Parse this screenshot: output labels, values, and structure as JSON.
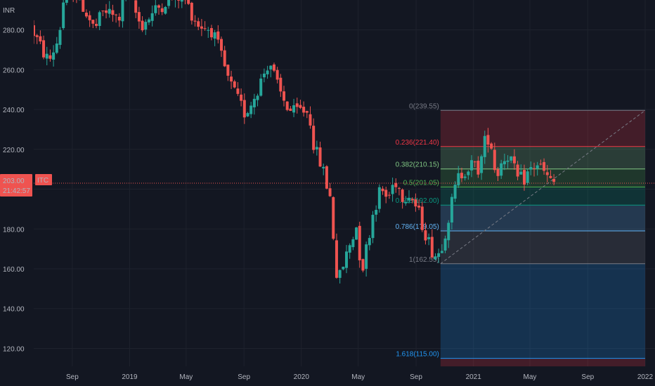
{
  "currency_label": "INR",
  "symbol": "ITC",
  "price_badge": {
    "price": "203.00",
    "time": "21:42:57"
  },
  "colors": {
    "background": "#131722",
    "grid": "#1e222d",
    "up": "#26a69a",
    "down": "#ef5350",
    "axis_text": "#b2b5be",
    "price_line": "#ef5350"
  },
  "chart_data": {
    "type": "candlestick",
    "title": "",
    "y_axis": {
      "ylim": [
        111,
        295
      ],
      "ticks": [
        "280.00",
        "260.00",
        "240.00",
        "220.00",
        "200.00",
        "180.00",
        "160.00",
        "140.00",
        "120.00"
      ],
      "tick_values": [
        280,
        260,
        240,
        220,
        200,
        180,
        160,
        140,
        120
      ],
      "position": "left"
    },
    "x_axis": {
      "xlim": [
        "2018-06-11",
        "2022-01-22"
      ],
      "ticks": [
        "Sep",
        "2019",
        "May",
        "Sep",
        "2020",
        "May",
        "Sep",
        "2021",
        "May",
        "Sep",
        "2022"
      ],
      "tick_dates": [
        "2018-09-01",
        "2019-01-01",
        "2019-05-01",
        "2019-09-01",
        "2020-01-01",
        "2020-05-01",
        "2020-09-01",
        "2021-01-01",
        "2021-05-01",
        "2021-09-01",
        "2022-01-01"
      ]
    },
    "grid": true,
    "current_price": 203.0,
    "fibonacci": {
      "start": {
        "date": "2020-10-23",
        "price": 162.55
      },
      "end": {
        "date": "2022-01-01",
        "price": 239.55
      },
      "levels": [
        {
          "ratio": 0,
          "price": 239.55,
          "label": "0(239.55)",
          "color": "#787b86"
        },
        {
          "ratio": 0.236,
          "price": 221.4,
          "label": "0.236(221.40)",
          "color": "#f23645"
        },
        {
          "ratio": 0.382,
          "price": 210.15,
          "label": "0.382(210.15)",
          "color": "#81c784"
        },
        {
          "ratio": 0.5,
          "price": 201.05,
          "label": "0.5(201.05)",
          "color": "#4caf50"
        },
        {
          "ratio": 0.618,
          "price": 192.0,
          "label": "0.618(192.00)",
          "color": "#089981"
        },
        {
          "ratio": 0.786,
          "price": 179.05,
          "label": "0.786(179.05)",
          "color": "#64b5f6"
        },
        {
          "ratio": 1,
          "price": 162.55,
          "label": "1(162.55)",
          "color": "#787b86"
        },
        {
          "ratio": 1.618,
          "price": 115.0,
          "label": "1.618(115.00)",
          "color": "#2196f3"
        }
      ]
    },
    "price_path": [
      [
        "2018-06-11",
        282
      ],
      [
        "2018-07-01",
        272
      ],
      [
        "2018-07-20",
        264
      ],
      [
        "2018-08-10",
        276
      ],
      [
        "2018-08-25",
        303
      ],
      [
        "2018-09-25",
        295
      ],
      [
        "2018-10-25",
        280
      ],
      [
        "2018-11-15",
        290
      ],
      [
        "2018-12-15",
        285
      ],
      [
        "2019-01-01",
        300
      ],
      [
        "2019-02-01",
        282
      ],
      [
        "2019-03-05",
        290
      ],
      [
        "2019-04-01",
        296
      ],
      [
        "2019-05-01",
        297
      ],
      [
        "2019-06-01",
        283
      ],
      [
        "2019-07-01",
        280
      ],
      [
        "2019-07-20",
        268
      ],
      [
        "2019-08-05",
        255
      ],
      [
        "2019-08-25",
        245
      ],
      [
        "2019-09-10",
        238
      ],
      [
        "2019-09-25",
        244
      ],
      [
        "2019-10-15",
        255
      ],
      [
        "2019-11-01",
        265
      ],
      [
        "2019-11-20",
        250
      ],
      [
        "2019-12-05",
        243
      ],
      [
        "2019-12-20",
        238
      ],
      [
        "2020-01-10",
        240
      ],
      [
        "2020-01-25",
        238
      ],
      [
        "2020-02-05",
        220
      ],
      [
        "2020-02-20",
        212
      ],
      [
        "2020-03-10",
        195
      ],
      [
        "2020-03-20",
        165
      ],
      [
        "2020-03-25",
        152
      ],
      [
        "2020-04-10",
        165
      ],
      [
        "2020-04-20",
        172
      ],
      [
        "2020-05-05",
        182
      ],
      [
        "2020-05-15",
        158
      ],
      [
        "2020-05-25",
        170
      ],
      [
        "2020-06-10",
        190
      ],
      [
        "2020-06-25",
        200
      ],
      [
        "2020-07-10",
        195
      ],
      [
        "2020-07-25",
        205
      ],
      [
        "2020-08-10",
        197
      ],
      [
        "2020-08-25",
        198
      ],
      [
        "2020-09-10",
        190
      ],
      [
        "2020-09-25",
        180
      ],
      [
        "2020-10-10",
        170
      ],
      [
        "2020-10-23",
        166
      ],
      [
        "2020-11-05",
        175
      ],
      [
        "2020-11-20",
        190
      ],
      [
        "2020-12-05",
        205
      ],
      [
        "2020-12-20",
        210
      ],
      [
        "2021-01-05",
        212
      ],
      [
        "2021-01-20",
        210
      ],
      [
        "2021-02-05",
        228
      ],
      [
        "2021-02-15",
        222
      ],
      [
        "2021-02-25",
        206
      ],
      [
        "2021-03-10",
        215
      ],
      [
        "2021-03-25",
        218
      ],
      [
        "2021-04-10",
        205
      ],
      [
        "2021-04-25",
        205
      ],
      [
        "2021-05-10",
        210
      ],
      [
        "2021-05-25",
        213
      ],
      [
        "2021-06-10",
        207
      ],
      [
        "2021-06-22",
        203
      ]
    ]
  }
}
